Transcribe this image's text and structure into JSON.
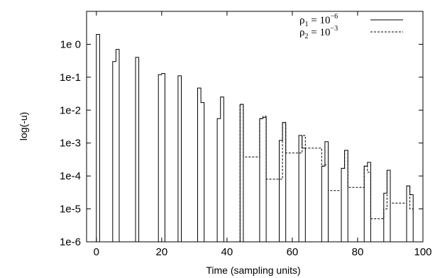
{
  "chart_data": {
    "type": "line",
    "title": "",
    "xlabel": "Time (sampling units)",
    "ylabel": "log(-u)",
    "xlim": [
      -3,
      100
    ],
    "ylim": [
      1e-06,
      10
    ],
    "y_scale": "log",
    "grid": false,
    "legend_position": "top-right",
    "x_ticks": [
      0,
      20,
      40,
      60,
      80,
      100
    ],
    "x_tick_labels": [
      "0",
      "20",
      "40",
      "60",
      "80",
      "100"
    ],
    "y_ticks": [
      1e-06,
      1e-05,
      0.0001,
      0.001,
      0.01,
      0.1,
      1
    ],
    "y_tick_labels": [
      "1e-6",
      "1e-5",
      "1e-4",
      "1e-3",
      "1e-2",
      "1e-1",
      "1e 0"
    ],
    "legend": {
      "rho1": {
        "symbol": "ρ",
        "sub": "1",
        "mid": " = 10",
        "sup": "−6"
      },
      "rho2": {
        "symbol": "ρ",
        "sub": "2",
        "mid": " = 10",
        "sup": "−3"
      }
    },
    "series": [
      {
        "style": "solid",
        "x": [
          0,
          0,
          1,
          1,
          5,
          5,
          6,
          6,
          7,
          7,
          12,
          12,
          13,
          13,
          19,
          19,
          20,
          20,
          21,
          21,
          25,
          25,
          26,
          26,
          31,
          31,
          32,
          32,
          33,
          33,
          37,
          37,
          38,
          38,
          39,
          39,
          44,
          44,
          45,
          45,
          50,
          50,
          51,
          51,
          52,
          52,
          56,
          56,
          57,
          57,
          58,
          58,
          62,
          62,
          63,
          63,
          64,
          64,
          69,
          69,
          70,
          70,
          71,
          71,
          75,
          75,
          76,
          76,
          77,
          77,
          82,
          82,
          83,
          83,
          84,
          84,
          88,
          88,
          89,
          89,
          90,
          90,
          95,
          95,
          96,
          96,
          97,
          97
        ],
        "y": [
          1e-06,
          2,
          2,
          1e-06,
          1e-06,
          0.3,
          0.3,
          0.7,
          0.7,
          1e-06,
          1e-06,
          0.4,
          0.4,
          1e-06,
          1e-06,
          0.12,
          0.12,
          0.13,
          0.13,
          1e-06,
          1e-06,
          0.11,
          0.11,
          1e-06,
          1e-06,
          0.047,
          0.047,
          0.017,
          0.017,
          1e-06,
          1e-06,
          0.0055,
          0.0055,
          0.025,
          0.025,
          1e-06,
          1e-06,
          0.015,
          0.015,
          1e-06,
          1e-06,
          0.0055,
          0.0055,
          0.006,
          0.006,
          1e-06,
          1e-06,
          0.0012,
          0.0012,
          0.0042,
          0.0042,
          1e-06,
          1e-06,
          0.0017,
          0.0017,
          0.0007,
          0.0007,
          1e-06,
          1e-06,
          0.0002,
          0.0002,
          0.0011,
          0.0011,
          1e-06,
          1e-06,
          0.00017,
          0.00017,
          0.0006,
          0.0006,
          1e-06,
          1e-06,
          0.0002,
          0.0002,
          0.00026,
          0.00026,
          1e-06,
          1e-06,
          3e-05,
          3e-05,
          0.00015,
          0.00015,
          1e-06,
          1e-06,
          5e-05,
          5e-05,
          2.7e-05,
          2.7e-05,
          1e-06
        ]
      },
      {
        "style": "dashed",
        "x": [
          44,
          44,
          45,
          45,
          50,
          50,
          51,
          51,
          52,
          52,
          57,
          57,
          58,
          58,
          63,
          63,
          64,
          64,
          69,
          69,
          70,
          70,
          71,
          71,
          75,
          75,
          76,
          76,
          77,
          77,
          82,
          82,
          83,
          83,
          84,
          84,
          88,
          88,
          89,
          89,
          90,
          90,
          95,
          95,
          96,
          96,
          97,
          97
        ],
        "y": [
          1e-06,
          0.015,
          0.015,
          0.00038,
          0.00038,
          0.0055,
          0.0055,
          0.0065,
          0.0065,
          8e-05,
          8e-05,
          0.0042,
          0.0042,
          0.0005,
          0.0005,
          0.0017,
          0.0017,
          0.0007,
          0.0007,
          0.0002,
          0.0002,
          0.00022,
          0.00022,
          3.6e-05,
          3.6e-05,
          0.00017,
          0.00017,
          0.0006,
          0.0006,
          4.5e-05,
          4.5e-05,
          0.0002,
          0.0002,
          0.00013,
          0.00013,
          5e-06,
          5e-06,
          1e-05,
          1e-05,
          0.00015,
          0.00015,
          1.5e-05,
          1.5e-05,
          5e-05,
          5e-05,
          1e-05,
          1e-05,
          8e-06
        ]
      }
    ]
  }
}
